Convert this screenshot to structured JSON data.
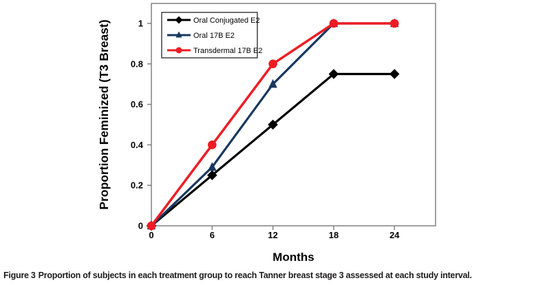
{
  "chart_data": {
    "type": "line",
    "x": [
      0,
      6,
      12,
      18,
      24
    ],
    "series": [
      {
        "name": "Oral Conjugated E2",
        "marker": "diamond",
        "color": "#000000",
        "values": [
          0,
          0.25,
          0.5,
          0.75,
          0.75
        ]
      },
      {
        "name": "Oral 17B E2",
        "marker": "triangle",
        "color": "#17375e",
        "values": [
          0,
          0.29,
          0.7,
          1,
          1
        ]
      },
      {
        "name": "Transdermal 17B E2",
        "marker": "circle",
        "color": "#ed1c24",
        "values": [
          0,
          0.4,
          0.8,
          1,
          1
        ]
      }
    ],
    "xlabel": "Months",
    "ylabel": "Proportion Feminized (T3 Breast)",
    "xticks": [
      0,
      6,
      12,
      18,
      24
    ],
    "yticks": [
      0,
      0.2,
      0.4,
      0.6,
      0.8,
      1
    ],
    "xlim": [
      0,
      28
    ],
    "ylim": [
      0,
      1.1
    ],
    "grid": false,
    "legend_position": "top-left",
    "axis_color": "#808080",
    "legend_border_color": "#404040",
    "plot_background": "#ffffff"
  },
  "caption": {
    "label": "Figure 3",
    "text": "Proportion of subjects in each treatment group to reach Tanner breast stage 3 assessed at each study interval."
  }
}
